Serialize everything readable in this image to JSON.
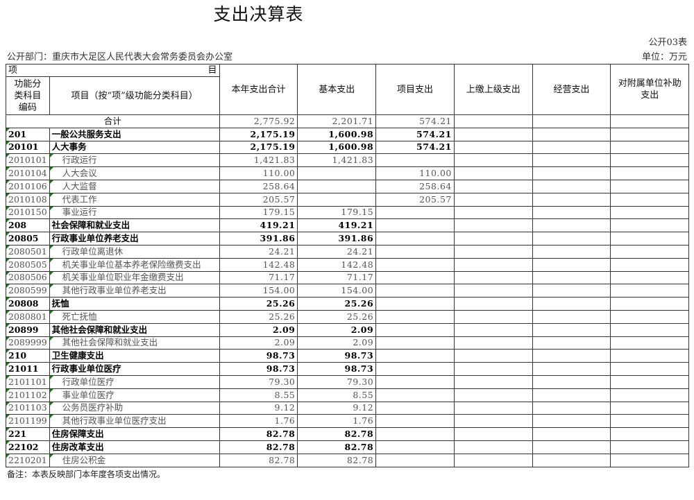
{
  "title": "支出决算表",
  "form_code": "公开03表",
  "department": "公开部门：重庆市大足区人民代表大会常务委员会办公室",
  "unit": "单位：万元",
  "headers": {
    "item_left": "项",
    "item_right": "目",
    "code": "功能分类科目编码",
    "name": "项目（按“项”级功能分类科目）",
    "total": "本年支出合计",
    "basic": "基本支出",
    "project": "项目支出",
    "upper": "上缴上级支出",
    "business": "经营支出",
    "subsidy": "对附属单位补助支出"
  },
  "total_row": {
    "label": "合计",
    "total": "2,775.92",
    "basic": "2,201.71",
    "project": "574.21"
  },
  "rows": [
    {
      "code": "201",
      "name": "一般公共服务支出",
      "total": "2,175.19",
      "basic": "1,600.98",
      "project": "574.21",
      "level": 1
    },
    {
      "code": "20101",
      "name": "人大事务",
      "total": "2,175.19",
      "basic": "1,600.98",
      "project": "574.21",
      "level": 2
    },
    {
      "code": "2010101",
      "name": "行政运行",
      "total": "1,421.83",
      "basic": "1,421.83",
      "project": "",
      "level": 3
    },
    {
      "code": "2010104",
      "name": "人大会议",
      "total": "110.00",
      "basic": "",
      "project": "110.00",
      "level": 3
    },
    {
      "code": "2010106",
      "name": "人大监督",
      "total": "258.64",
      "basic": "",
      "project": "258.64",
      "level": 3
    },
    {
      "code": "2010108",
      "name": "代表工作",
      "total": "205.57",
      "basic": "",
      "project": "205.57",
      "level": 3
    },
    {
      "code": "2010150",
      "name": "事业运行",
      "total": "179.15",
      "basic": "179.15",
      "project": "",
      "level": 3
    },
    {
      "code": "208",
      "name": "社会保障和就业支出",
      "total": "419.21",
      "basic": "419.21",
      "project": "",
      "level": 1
    },
    {
      "code": "20805",
      "name": "行政事业单位养老支出",
      "total": "391.86",
      "basic": "391.86",
      "project": "",
      "level": 2
    },
    {
      "code": "2080501",
      "name": "行政单位离退休",
      "total": "24.21",
      "basic": "24.21",
      "project": "",
      "level": 3
    },
    {
      "code": "2080505",
      "name": "机关事业单位基本养老保险缴费支出",
      "total": "142.48",
      "basic": "142.48",
      "project": "",
      "level": 3
    },
    {
      "code": "2080506",
      "name": "机关事业单位职业年金缴费支出",
      "total": "71.17",
      "basic": "71.17",
      "project": "",
      "level": 3
    },
    {
      "code": "2080599",
      "name": "其他行政事业单位养老支出",
      "total": "154.00",
      "basic": "154.00",
      "project": "",
      "level": 3
    },
    {
      "code": "20808",
      "name": "抚恤",
      "total": "25.26",
      "basic": "25.26",
      "project": "",
      "level": 2
    },
    {
      "code": "2080801",
      "name": "死亡抚恤",
      "total": "25.26",
      "basic": "25.26",
      "project": "",
      "level": 3
    },
    {
      "code": "20899",
      "name": "其他社会保障和就业支出",
      "total": "2.09",
      "basic": "2.09",
      "project": "",
      "level": 2
    },
    {
      "code": "2089999",
      "name": "其他社会保障和就业支出",
      "total": "2.09",
      "basic": "2.09",
      "project": "",
      "level": 3
    },
    {
      "code": "210",
      "name": "卫生健康支出",
      "total": "98.73",
      "basic": "98.73",
      "project": "",
      "level": 1
    },
    {
      "code": "21011",
      "name": "行政事业单位医疗",
      "total": "98.73",
      "basic": "98.73",
      "project": "",
      "level": 2
    },
    {
      "code": "2101101",
      "name": "行政单位医疗",
      "total": "79.30",
      "basic": "79.30",
      "project": "",
      "level": 3
    },
    {
      "code": "2101102",
      "name": "事业单位医疗",
      "total": "8.55",
      "basic": "8.55",
      "project": "",
      "level": 3
    },
    {
      "code": "2101103",
      "name": "公务员医疗补助",
      "total": "9.12",
      "basic": "9.12",
      "project": "",
      "level": 3
    },
    {
      "code": "2101199",
      "name": "其他行政事业单位医疗支出",
      "total": "1.76",
      "basic": "1.76",
      "project": "",
      "level": 3
    },
    {
      "code": "221",
      "name": "住房保障支出",
      "total": "82.78",
      "basic": "82.78",
      "project": "",
      "level": 1
    },
    {
      "code": "22102",
      "name": "住房改革支出",
      "total": "82.78",
      "basic": "82.78",
      "project": "",
      "level": 2
    },
    {
      "code": "2210201",
      "name": "住房公积金",
      "total": "82.78",
      "basic": "82.78",
      "project": "",
      "level": 3
    }
  ],
  "note": "备注：本表反映部门本年度各项支出情况。"
}
